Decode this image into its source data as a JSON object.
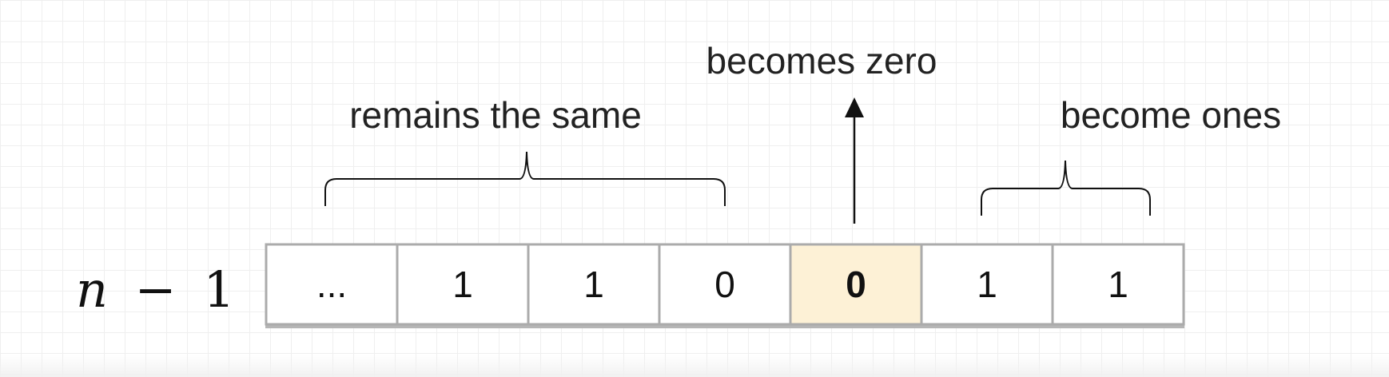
{
  "labels": {
    "becomes_zero": "becomes zero",
    "remains_same": "remains the same",
    "become_ones": "become ones"
  },
  "row_label": {
    "variable": "n",
    "operator": "−",
    "constant": "1"
  },
  "cells": [
    {
      "value": "...",
      "highlighted": false
    },
    {
      "value": "1",
      "highlighted": false
    },
    {
      "value": "1",
      "highlighted": false
    },
    {
      "value": "0",
      "highlighted": false
    },
    {
      "value": "0",
      "highlighted": true
    },
    {
      "value": "1",
      "highlighted": false
    },
    {
      "value": "1",
      "highlighted": false
    }
  ],
  "colors": {
    "cell_border": "#ababab",
    "highlight_fill": "#fdf1d6",
    "cell_fill": "#ffffff",
    "stroke": "#111111"
  }
}
